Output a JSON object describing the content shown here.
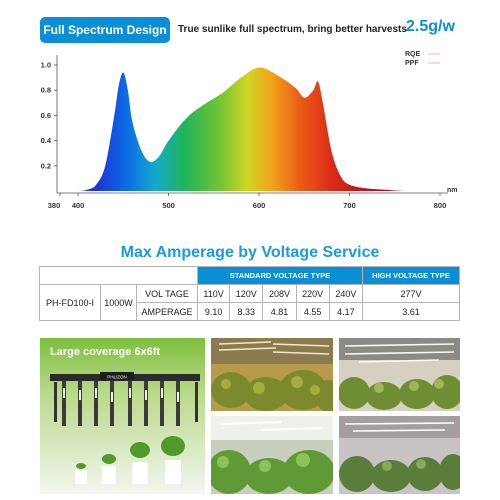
{
  "header": {
    "badge": "Full Spectrum Design",
    "tagline": "True sunlike full spectrum, bring better harvests",
    "value": "2.5g/w"
  },
  "chart_data": {
    "type": "area",
    "title": "",
    "xlabel": "",
    "x_unit": "nm",
    "ylabel": "",
    "xlim": [
      380,
      800
    ],
    "ylim": [
      0,
      1.0
    ],
    "x_ticks": [
      "380",
      "400",
      "500",
      "600",
      "700",
      "800"
    ],
    "y_ticks": [
      "0.2",
      "0.4",
      "0.6",
      "0.8",
      "1.0"
    ],
    "legend": [
      "RQE",
      "PPF"
    ],
    "legend_position": "top-right",
    "grid": false,
    "x": [
      390,
      400,
      410,
      420,
      430,
      440,
      445,
      450,
      455,
      460,
      470,
      480,
      490,
      500,
      520,
      540,
      560,
      580,
      600,
      620,
      640,
      650,
      660,
      665,
      670,
      680,
      690,
      700,
      720,
      740,
      760,
      780,
      800
    ],
    "values": [
      0.0,
      0.0,
      0.01,
      0.05,
      0.2,
      0.6,
      0.84,
      0.94,
      0.8,
      0.55,
      0.32,
      0.23,
      0.28,
      0.4,
      0.58,
      0.69,
      0.78,
      0.9,
      0.98,
      0.92,
      0.82,
      0.74,
      0.8,
      0.87,
      0.72,
      0.32,
      0.12,
      0.05,
      0.02,
      0.01,
      0.0,
      0.0,
      0.0
    ]
  },
  "table": {
    "title": "Max Amperage by Voltage Service",
    "standard_header": "STANDARD VOLTAGE TYPE",
    "high_header": "HIGH VOLTAGE TYPE",
    "model": "PH-FD100-I",
    "wattage": "1000W",
    "row1_label": "VOL TAGE",
    "row2_label": "AMPERAGE",
    "voltages": [
      "110V",
      "120V",
      "208V",
      "220V",
      "240V"
    ],
    "amperages": [
      "9.10",
      "8.33",
      "4.81",
      "4.55",
      "4.17"
    ],
    "high_voltage": "277V",
    "high_amperage": "3.61"
  },
  "photos": {
    "coverage_label": "Large coverage 6x6ft",
    "brand": "PHLIZON"
  }
}
